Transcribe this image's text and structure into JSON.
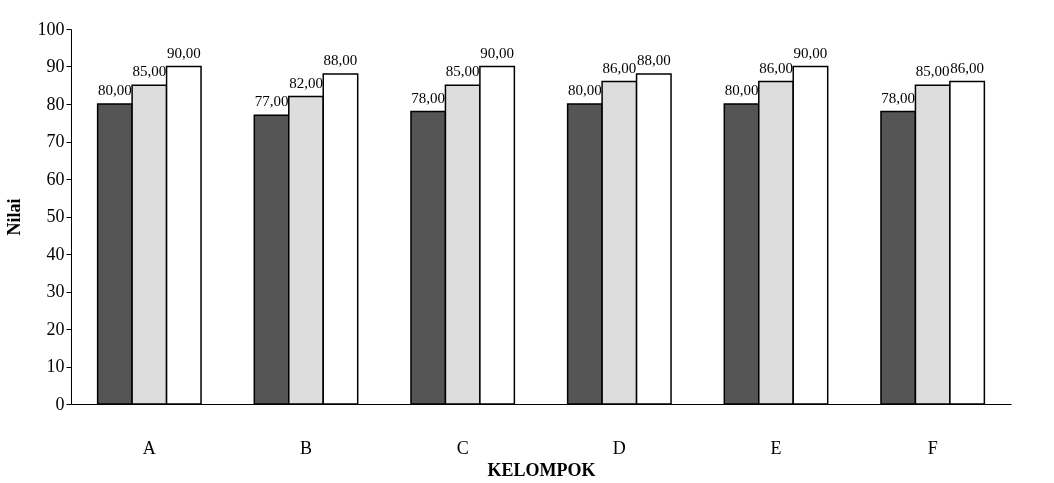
{
  "chart_data": {
    "type": "bar",
    "xlabel": "KELOMPOK",
    "ylabel": "Nilai",
    "categories": [
      "A",
      "B",
      "C",
      "D",
      "E",
      "F"
    ],
    "ylim": [
      0,
      100
    ],
    "yticks": [
      0,
      10,
      20,
      30,
      40,
      50,
      60,
      70,
      80,
      90,
      100
    ],
    "grid": false,
    "legend": false,
    "series": [
      {
        "color": "#555555",
        "values": [
          80,
          77,
          78,
          80,
          80,
          78
        ],
        "value_labels": [
          "80,00",
          "77,00",
          "78,00",
          "80,00",
          "80,00",
          "78,00"
        ]
      },
      {
        "color": "#dddddd",
        "values": [
          85,
          82,
          85,
          86,
          86,
          85
        ],
        "value_labels": [
          "85,00",
          "82,00",
          "85,00",
          "86,00",
          "86,00",
          "85,00"
        ]
      },
      {
        "color": "#ffffff",
        "values": [
          90,
          88,
          90,
          88,
          90,
          86
        ],
        "value_labels": [
          "90,00",
          "88,00",
          "90,00",
          "88,00",
          "90,00",
          "86,00"
        ]
      }
    ]
  }
}
